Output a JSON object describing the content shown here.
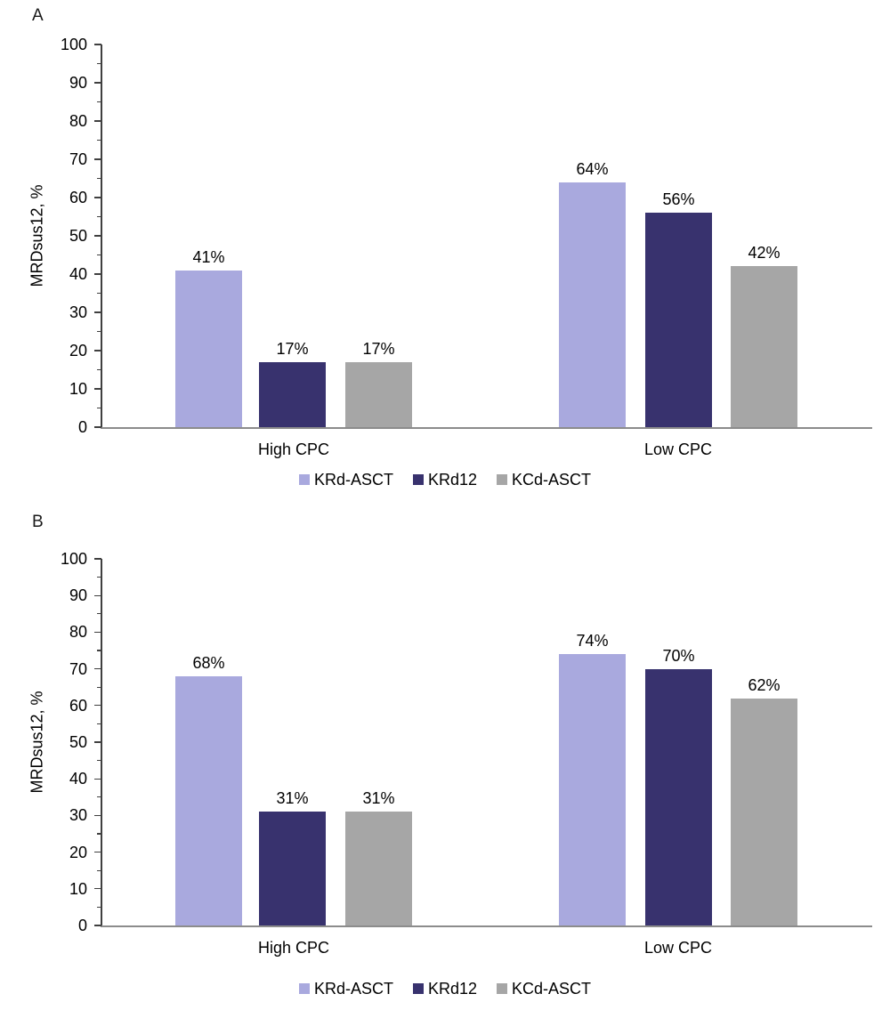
{
  "figure": {
    "background": "#ffffff"
  },
  "chart_data": [
    {
      "type": "bar",
      "panel_label": "A",
      "title": "",
      "xlabel": "",
      "ylabel": "MRDsus12, %",
      "ylim": [
        0,
        100
      ],
      "ytick_step": 10,
      "ytick_minor_step": 5,
      "grid": false,
      "legend_position": "bottom",
      "categories": [
        "High CPC",
        "Low CPC"
      ],
      "series": [
        {
          "name": "KRd-ASCT",
          "color": "#A9A9DE",
          "values": [
            41,
            64
          ],
          "value_labels": [
            "41%",
            "64%"
          ]
        },
        {
          "name": "KRd12",
          "color": "#38326E",
          "values": [
            17,
            56
          ],
          "value_labels": [
            "17%",
            "56%"
          ]
        },
        {
          "name": "KCd-ASCT",
          "color": "#A6A6A6",
          "values": [
            17,
            42
          ],
          "value_labels": [
            "17%",
            "42%"
          ]
        }
      ]
    },
    {
      "type": "bar",
      "panel_label": "B",
      "title": "",
      "xlabel": "",
      "ylabel": "MRDsus12, %",
      "ylim": [
        0,
        100
      ],
      "ytick_step": 10,
      "ytick_minor_step": 5,
      "grid": false,
      "legend_position": "bottom",
      "categories": [
        "High CPC",
        "Low CPC"
      ],
      "series": [
        {
          "name": "KRd-ASCT",
          "color": "#A9A9DE",
          "values": [
            68,
            74
          ],
          "value_labels": [
            "68%",
            "74%"
          ]
        },
        {
          "name": "KRd12",
          "color": "#38326E",
          "values": [
            31,
            70
          ],
          "value_labels": [
            "31%",
            "70%"
          ]
        },
        {
          "name": "KCd-ASCT",
          "color": "#A6A6A6",
          "values": [
            31,
            62
          ],
          "value_labels": [
            "31%",
            "62%"
          ]
        }
      ]
    }
  ]
}
